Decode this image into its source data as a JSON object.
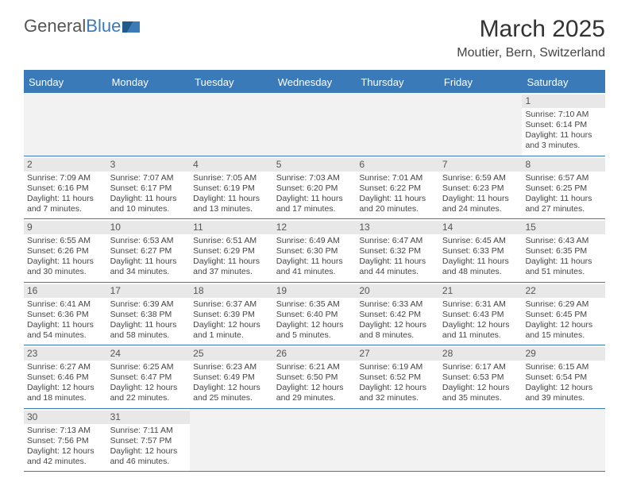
{
  "logo": {
    "word1": "General",
    "word2": "Blue"
  },
  "title": "March 2025",
  "location": "Moutier, Bern, Switzerland",
  "colors": {
    "accent": "#3a7ab8",
    "header_bg": "#3a7ab8",
    "header_text": "#ffffff",
    "daynum_bg": "#e8e8e8",
    "blank_bg": "#f2f2f2",
    "rule": "#3a7ab8",
    "text": "#444444"
  },
  "day_headers": [
    "Sunday",
    "Monday",
    "Tuesday",
    "Wednesday",
    "Thursday",
    "Friday",
    "Saturday"
  ],
  "weeks": [
    [
      {
        "blank": true
      },
      {
        "blank": true
      },
      {
        "blank": true
      },
      {
        "blank": true
      },
      {
        "blank": true
      },
      {
        "blank": true
      },
      {
        "n": "1",
        "sunrise": "Sunrise: 7:10 AM",
        "sunset": "Sunset: 6:14 PM",
        "daylight": "Daylight: 11 hours and 3 minutes."
      }
    ],
    [
      {
        "n": "2",
        "sunrise": "Sunrise: 7:09 AM",
        "sunset": "Sunset: 6:16 PM",
        "daylight": "Daylight: 11 hours and 7 minutes."
      },
      {
        "n": "3",
        "sunrise": "Sunrise: 7:07 AM",
        "sunset": "Sunset: 6:17 PM",
        "daylight": "Daylight: 11 hours and 10 minutes."
      },
      {
        "n": "4",
        "sunrise": "Sunrise: 7:05 AM",
        "sunset": "Sunset: 6:19 PM",
        "daylight": "Daylight: 11 hours and 13 minutes."
      },
      {
        "n": "5",
        "sunrise": "Sunrise: 7:03 AM",
        "sunset": "Sunset: 6:20 PM",
        "daylight": "Daylight: 11 hours and 17 minutes."
      },
      {
        "n": "6",
        "sunrise": "Sunrise: 7:01 AM",
        "sunset": "Sunset: 6:22 PM",
        "daylight": "Daylight: 11 hours and 20 minutes."
      },
      {
        "n": "7",
        "sunrise": "Sunrise: 6:59 AM",
        "sunset": "Sunset: 6:23 PM",
        "daylight": "Daylight: 11 hours and 24 minutes."
      },
      {
        "n": "8",
        "sunrise": "Sunrise: 6:57 AM",
        "sunset": "Sunset: 6:25 PM",
        "daylight": "Daylight: 11 hours and 27 minutes."
      }
    ],
    [
      {
        "n": "9",
        "sunrise": "Sunrise: 6:55 AM",
        "sunset": "Sunset: 6:26 PM",
        "daylight": "Daylight: 11 hours and 30 minutes."
      },
      {
        "n": "10",
        "sunrise": "Sunrise: 6:53 AM",
        "sunset": "Sunset: 6:27 PM",
        "daylight": "Daylight: 11 hours and 34 minutes."
      },
      {
        "n": "11",
        "sunrise": "Sunrise: 6:51 AM",
        "sunset": "Sunset: 6:29 PM",
        "daylight": "Daylight: 11 hours and 37 minutes."
      },
      {
        "n": "12",
        "sunrise": "Sunrise: 6:49 AM",
        "sunset": "Sunset: 6:30 PM",
        "daylight": "Daylight: 11 hours and 41 minutes."
      },
      {
        "n": "13",
        "sunrise": "Sunrise: 6:47 AM",
        "sunset": "Sunset: 6:32 PM",
        "daylight": "Daylight: 11 hours and 44 minutes."
      },
      {
        "n": "14",
        "sunrise": "Sunrise: 6:45 AM",
        "sunset": "Sunset: 6:33 PM",
        "daylight": "Daylight: 11 hours and 48 minutes."
      },
      {
        "n": "15",
        "sunrise": "Sunrise: 6:43 AM",
        "sunset": "Sunset: 6:35 PM",
        "daylight": "Daylight: 11 hours and 51 minutes."
      }
    ],
    [
      {
        "n": "16",
        "sunrise": "Sunrise: 6:41 AM",
        "sunset": "Sunset: 6:36 PM",
        "daylight": "Daylight: 11 hours and 54 minutes."
      },
      {
        "n": "17",
        "sunrise": "Sunrise: 6:39 AM",
        "sunset": "Sunset: 6:38 PM",
        "daylight": "Daylight: 11 hours and 58 minutes."
      },
      {
        "n": "18",
        "sunrise": "Sunrise: 6:37 AM",
        "sunset": "Sunset: 6:39 PM",
        "daylight": "Daylight: 12 hours and 1 minute."
      },
      {
        "n": "19",
        "sunrise": "Sunrise: 6:35 AM",
        "sunset": "Sunset: 6:40 PM",
        "daylight": "Daylight: 12 hours and 5 minutes."
      },
      {
        "n": "20",
        "sunrise": "Sunrise: 6:33 AM",
        "sunset": "Sunset: 6:42 PM",
        "daylight": "Daylight: 12 hours and 8 minutes."
      },
      {
        "n": "21",
        "sunrise": "Sunrise: 6:31 AM",
        "sunset": "Sunset: 6:43 PM",
        "daylight": "Daylight: 12 hours and 11 minutes."
      },
      {
        "n": "22",
        "sunrise": "Sunrise: 6:29 AM",
        "sunset": "Sunset: 6:45 PM",
        "daylight": "Daylight: 12 hours and 15 minutes."
      }
    ],
    [
      {
        "n": "23",
        "sunrise": "Sunrise: 6:27 AM",
        "sunset": "Sunset: 6:46 PM",
        "daylight": "Daylight: 12 hours and 18 minutes."
      },
      {
        "n": "24",
        "sunrise": "Sunrise: 6:25 AM",
        "sunset": "Sunset: 6:47 PM",
        "daylight": "Daylight: 12 hours and 22 minutes."
      },
      {
        "n": "25",
        "sunrise": "Sunrise: 6:23 AM",
        "sunset": "Sunset: 6:49 PM",
        "daylight": "Daylight: 12 hours and 25 minutes."
      },
      {
        "n": "26",
        "sunrise": "Sunrise: 6:21 AM",
        "sunset": "Sunset: 6:50 PM",
        "daylight": "Daylight: 12 hours and 29 minutes."
      },
      {
        "n": "27",
        "sunrise": "Sunrise: 6:19 AM",
        "sunset": "Sunset: 6:52 PM",
        "daylight": "Daylight: 12 hours and 32 minutes."
      },
      {
        "n": "28",
        "sunrise": "Sunrise: 6:17 AM",
        "sunset": "Sunset: 6:53 PM",
        "daylight": "Daylight: 12 hours and 35 minutes."
      },
      {
        "n": "29",
        "sunrise": "Sunrise: 6:15 AM",
        "sunset": "Sunset: 6:54 PM",
        "daylight": "Daylight: 12 hours and 39 minutes."
      }
    ],
    [
      {
        "n": "30",
        "sunrise": "Sunrise: 7:13 AM",
        "sunset": "Sunset: 7:56 PM",
        "daylight": "Daylight: 12 hours and 42 minutes."
      },
      {
        "n": "31",
        "sunrise": "Sunrise: 7:11 AM",
        "sunset": "Sunset: 7:57 PM",
        "daylight": "Daylight: 12 hours and 46 minutes."
      },
      {
        "blank": true
      },
      {
        "blank": true
      },
      {
        "blank": true
      },
      {
        "blank": true
      },
      {
        "blank": true
      }
    ]
  ]
}
